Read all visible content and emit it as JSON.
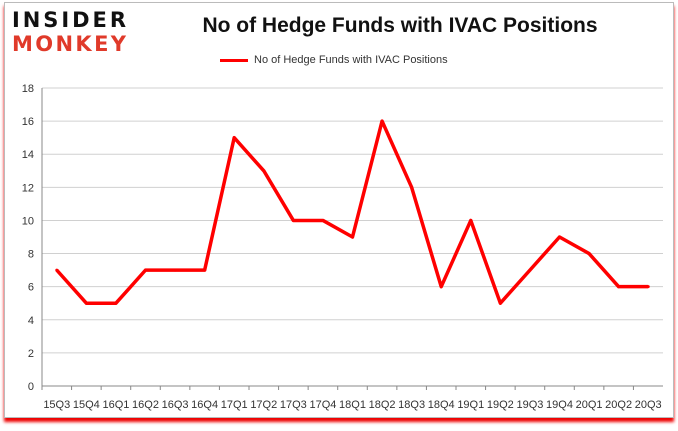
{
  "logo": {
    "line1": "INSIDER",
    "line2": "MONKEY"
  },
  "chart_data": {
    "type": "line",
    "title": "No of Hedge Funds with IVAC Positions",
    "xlabel": "",
    "ylabel": "",
    "categories": [
      "15Q3",
      "15Q4",
      "16Q1",
      "16Q2",
      "16Q3",
      "16Q4",
      "17Q1",
      "17Q2",
      "17Q3",
      "17Q4",
      "18Q1",
      "18Q2",
      "18Q3",
      "18Q4",
      "19Q1",
      "19Q2",
      "19Q3",
      "19Q4",
      "20Q1",
      "20Q2",
      "20Q3"
    ],
    "series": [
      {
        "name": "No of Hedge Funds with IVAC Positions",
        "color": "#ff0000",
        "values": [
          7,
          5,
          5,
          7,
          7,
          7,
          15,
          13,
          10,
          10,
          9,
          16,
          12,
          6,
          10,
          5,
          7,
          9,
          8,
          6,
          6
        ]
      }
    ],
    "ylim": [
      0,
      18
    ],
    "yticks": [
      0,
      2,
      4,
      6,
      8,
      10,
      12,
      14,
      16,
      18
    ],
    "grid": true,
    "legend": "top"
  }
}
